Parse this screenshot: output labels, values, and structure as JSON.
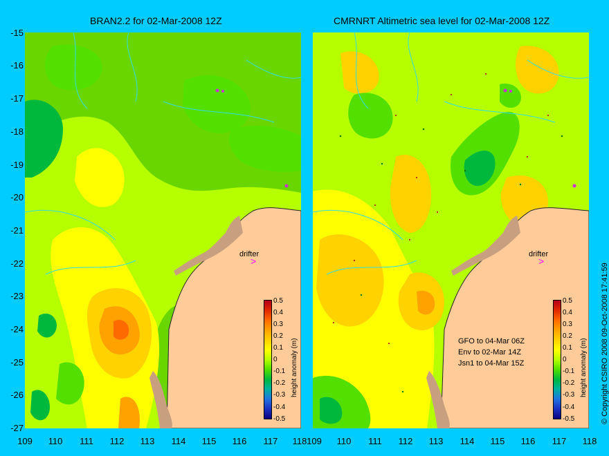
{
  "left_panel": {
    "title": "BRAN2.2 for 02-Mar-2008 12Z"
  },
  "right_panel": {
    "title": "CMRNRT Altimetric sea level  for 02-Mar-2008 12Z",
    "legend_lines": [
      "GFO to 04-Mar 06Z",
      "Env to 02-Mar 14Z",
      "Jsn1 to 04-Mar 15Z"
    ]
  },
  "drifter_label": "drifter",
  "colorbar": {
    "title": "height anomaly (m)",
    "ticks": [
      "0.5",
      "0.4",
      "0.3",
      "0.2",
      "0.1",
      "0",
      "-0.1",
      "-0.2",
      "-0.3",
      "-0.4",
      "-0.5"
    ],
    "colors": [
      "#b5001c",
      "#e02800",
      "#ff6a00",
      "#ffa200",
      "#ffd200",
      "#ffff00",
      "#b5ff00",
      "#53e000",
      "#00b83c",
      "#00b2a0",
      "#1f74e0",
      "#1b30c0",
      "#0b0080"
    ]
  },
  "y_axis_ticks": [
    "-15",
    "-16",
    "-17",
    "-18",
    "-19",
    "-20",
    "-21",
    "-22",
    "-23",
    "-24",
    "-25",
    "-26",
    "-27"
  ],
  "x_axis_ticks": [
    "109",
    "110",
    "111",
    "112",
    "113",
    "114",
    "115",
    "116",
    "117",
    "118"
  ],
  "land_color": "#ffcc99",
  "copyright": "© Copyright CSIRO 2008    09-Oct-2008 17:41:59"
}
